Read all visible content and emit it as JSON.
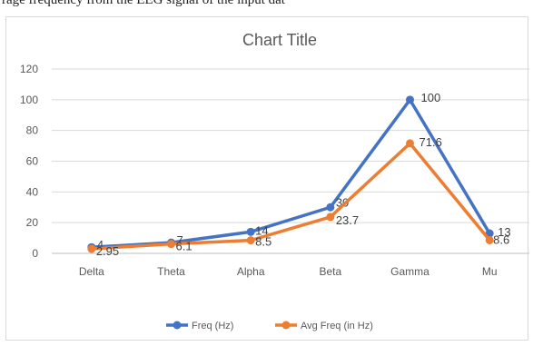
{
  "page_caption": "rage frequency from the EEG signal of the input dat",
  "chart_data": {
    "type": "line",
    "title": "Chart Title",
    "categories": [
      "Delta",
      "Theta",
      "Alpha",
      "Beta",
      "Gamma",
      "Mu"
    ],
    "ylim": [
      0,
      120
    ],
    "yticks": [
      0,
      20,
      40,
      60,
      80,
      100,
      120
    ],
    "grid": true,
    "legend_position": "bottom",
    "series": [
      {
        "name": "Freq (Hz)",
        "color": "#4472c4",
        "values": [
          4,
          7,
          14,
          30,
          100,
          13
        ],
        "labels": [
          "4",
          "7",
          "14",
          "30",
          "100",
          "13"
        ]
      },
      {
        "name": "Avg Freq (in Hz)",
        "color": "#ed7d31",
        "values": [
          2.95,
          6.1,
          8.5,
          23.7,
          71.6,
          8.6
        ],
        "labels": [
          "2.95",
          "6.1",
          "8.5",
          "23.7",
          "71.6",
          "8.6"
        ]
      }
    ]
  }
}
